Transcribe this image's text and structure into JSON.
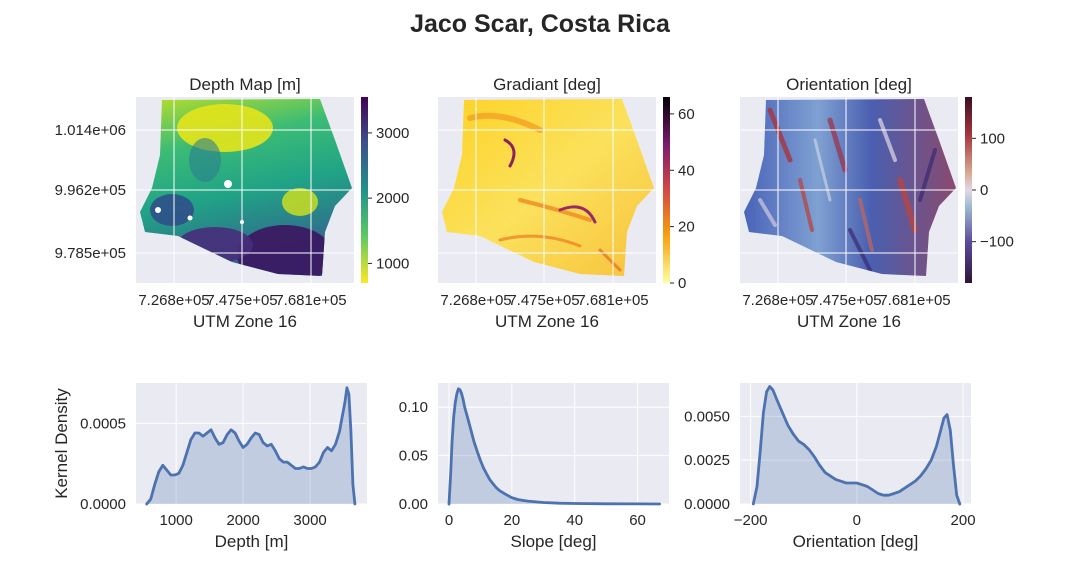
{
  "title": "Jaco Scar, Costa Rica",
  "colors": {
    "panel_bg": "#eaeaf2",
    "grid": "#ffffff",
    "kde_line": "#4c72b0",
    "kde_fill": "#4c72b0"
  },
  "maps": [
    {
      "id": "depth",
      "title": "Depth Map [m]",
      "xlabel": "UTM Zone 16",
      "x_ticks": [
        "7.268e+05",
        "7.475e+05",
        "7.681e+05"
      ],
      "y_ticks": [
        "1.014e+06",
        "9.962e+05",
        "9.785e+05"
      ],
      "colormap": "viridis_r",
      "colorbar": {
        "min": 700,
        "max": 3550,
        "ticks": [
          1000,
          2000,
          3000
        ],
        "tick_labels": [
          "1000",
          "2000",
          "3000"
        ]
      }
    },
    {
      "id": "gradient",
      "title": "Gradiant [deg]",
      "xlabel": "UTM Zone 16",
      "x_ticks": [
        "7.268e+05",
        "7.475e+05",
        "7.681e+05"
      ],
      "colormap": "inferno_r",
      "colorbar": {
        "min": 0,
        "max": 66,
        "ticks": [
          0,
          20,
          40,
          60
        ],
        "tick_labels": [
          "0",
          "20",
          "40",
          "60"
        ]
      }
    },
    {
      "id": "orientation",
      "title": "Orientation [deg]",
      "xlabel": "UTM Zone 16",
      "x_ticks": [
        "7.268e+05",
        "7.475e+05",
        "7.681e+05"
      ],
      "colormap": "twilight_shifted",
      "colorbar": {
        "min": -180,
        "max": 180,
        "ticks": [
          -100,
          0,
          100
        ],
        "tick_labels": [
          "−100",
          "0",
          "100"
        ]
      }
    }
  ],
  "chart_data": [
    {
      "type": "area",
      "title": "",
      "xlabel": "Depth [m]",
      "ylabel": "Kernel Density",
      "xlim": [
        400,
        3850
      ],
      "ylim": [
        0,
        0.00075
      ],
      "x_ticks": [
        1000,
        2000,
        3000
      ],
      "x_tick_labels": [
        "1000",
        "2000",
        "3000"
      ],
      "y_ticks": [
        0,
        0.0005
      ],
      "y_tick_labels": [
        "0.0000",
        "0.0005"
      ],
      "x": [
        560,
        620,
        680,
        740,
        800,
        860,
        920,
        980,
        1040,
        1100,
        1160,
        1220,
        1280,
        1340,
        1400,
        1460,
        1520,
        1580,
        1640,
        1700,
        1760,
        1820,
        1880,
        1940,
        2000,
        2060,
        2120,
        2180,
        2240,
        2300,
        2360,
        2420,
        2480,
        2540,
        2600,
        2660,
        2720,
        2780,
        2840,
        2900,
        2960,
        3020,
        3080,
        3140,
        3200,
        3260,
        3320,
        3380,
        3440,
        3480,
        3520,
        3550,
        3580,
        3610,
        3640,
        3670
      ],
      "y": [
        0.0,
        3e-05,
        0.00012,
        0.0002,
        0.00024,
        0.00021,
        0.00018,
        0.00018,
        0.00019,
        0.00024,
        0.00032,
        0.0004,
        0.00044,
        0.00044,
        0.00042,
        0.00044,
        0.00046,
        0.00041,
        0.00037,
        0.00038,
        0.00043,
        0.00046,
        0.00044,
        0.00039,
        0.00035,
        0.00037,
        0.00041,
        0.00044,
        0.00043,
        0.00038,
        0.00036,
        0.00037,
        0.00033,
        0.00028,
        0.00026,
        0.00026,
        0.00024,
        0.00022,
        0.00022,
        0.00023,
        0.00022,
        0.00022,
        0.00023,
        0.00026,
        0.00032,
        0.00035,
        0.00033,
        0.00037,
        0.00045,
        0.00054,
        0.00063,
        0.00072,
        0.00068,
        0.00045,
        0.00012,
        0.0
      ]
    },
    {
      "type": "area",
      "title": "",
      "xlabel": "Slope [deg]",
      "ylabel": "",
      "xlim": [
        -3.5,
        70
      ],
      "ylim": [
        0,
        0.125
      ],
      "x_ticks": [
        0,
        20,
        40,
        60
      ],
      "x_tick_labels": [
        "0",
        "20",
        "40",
        "60"
      ],
      "y_ticks": [
        0,
        0.05,
        0.1
      ],
      "y_tick_labels": [
        "0.00",
        "0.05",
        "0.10"
      ],
      "x": [
        0,
        0.5,
        1,
        1.5,
        2,
        2.5,
        3,
        3.5,
        4,
        4.5,
        5,
        6,
        7,
        8,
        9,
        10,
        11,
        12,
        13,
        14,
        15,
        16,
        18,
        20,
        22,
        25,
        30,
        35,
        40,
        50,
        60,
        67
      ],
      "y": [
        0.0,
        0.03,
        0.065,
        0.09,
        0.105,
        0.114,
        0.119,
        0.118,
        0.114,
        0.108,
        0.1,
        0.088,
        0.076,
        0.064,
        0.054,
        0.045,
        0.037,
        0.031,
        0.025,
        0.021,
        0.017,
        0.014,
        0.01,
        0.0065,
        0.0045,
        0.003,
        0.0015,
        0.0008,
        0.0005,
        0.0002,
        0.0001,
        0.0
      ]
    },
    {
      "type": "area",
      "title": "",
      "xlabel": "Orientation [deg]",
      "ylabel": "",
      "xlim": [
        -220,
        215
      ],
      "ylim": [
        0,
        0.0069
      ],
      "x_ticks": [
        -200,
        0,
        200
      ],
      "x_tick_labels": [
        "−200",
        "0",
        "200"
      ],
      "y_ticks": [
        0,
        0.0025,
        0.005
      ],
      "y_tick_labels": [
        "0.0000",
        "0.0025",
        "0.0050"
      ],
      "x": [
        -195,
        -188,
        -182,
        -176,
        -170,
        -164,
        -158,
        -150,
        -140,
        -130,
        -120,
        -110,
        -100,
        -90,
        -80,
        -70,
        -60,
        -50,
        -40,
        -30,
        -20,
        -10,
        0,
        10,
        20,
        30,
        40,
        50,
        60,
        70,
        80,
        90,
        100,
        110,
        120,
        130,
        140,
        150,
        158,
        164,
        170,
        176,
        182,
        188,
        194
      ],
      "y": [
        0.0,
        0.001,
        0.003,
        0.0052,
        0.0064,
        0.0067,
        0.0065,
        0.0059,
        0.0052,
        0.0045,
        0.004,
        0.0036,
        0.0034,
        0.0031,
        0.0027,
        0.0022,
        0.0018,
        0.0016,
        0.0014,
        0.0013,
        0.0012,
        0.0012,
        0.0012,
        0.0011,
        0.001,
        0.0008,
        0.0006,
        0.0005,
        0.0005,
        0.0006,
        0.0007,
        0.0009,
        0.0011,
        0.0013,
        0.0016,
        0.002,
        0.0025,
        0.0033,
        0.0042,
        0.0049,
        0.0051,
        0.0042,
        0.0022,
        0.0005,
        0.0
      ]
    }
  ]
}
